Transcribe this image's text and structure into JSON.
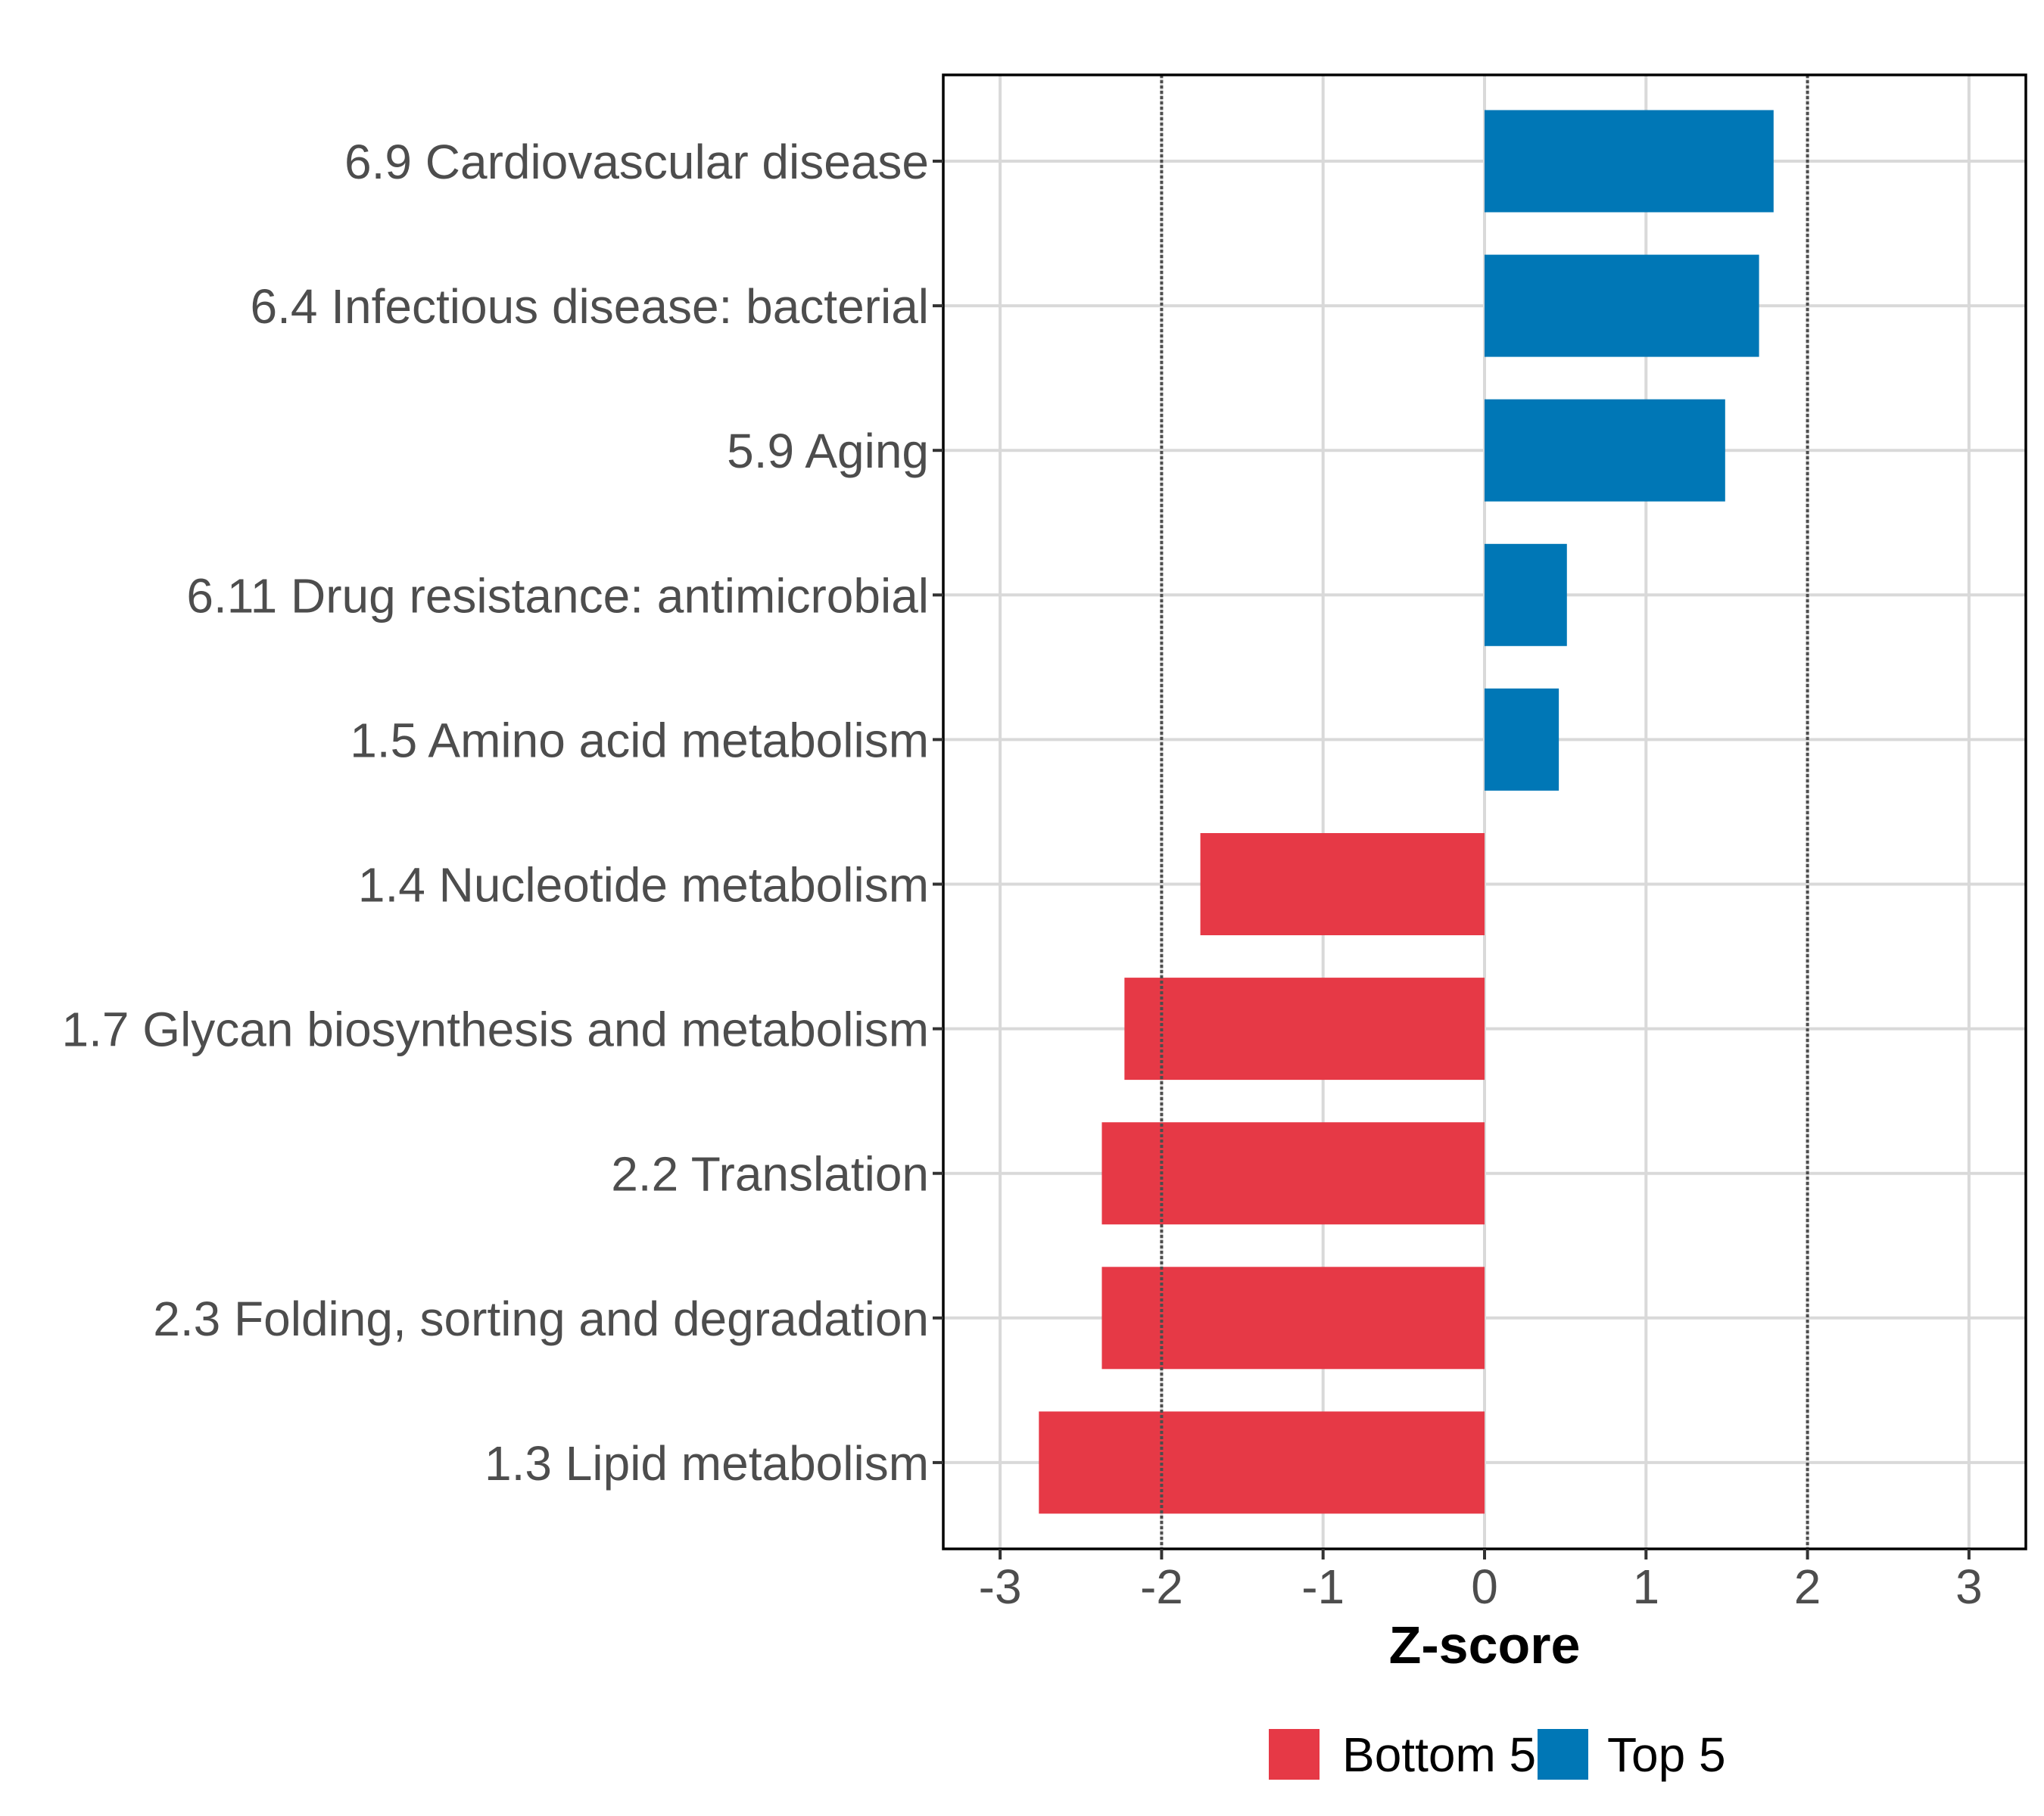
{
  "chart_data": {
    "type": "bar",
    "orientation": "horizontal",
    "title": "",
    "xlabel": "Z-score",
    "ylabel": "",
    "xlim": [
      -3.35,
      3.35
    ],
    "x_ticks": [
      -3,
      -2,
      -1,
      0,
      1,
      2,
      3
    ],
    "x_tick_labels": [
      "-3",
      "-2",
      "-1",
      "0",
      "1",
      "2",
      "3"
    ],
    "grid": true,
    "reference_lines": [
      {
        "x": -2,
        "style": "dotted"
      },
      {
        "x": 2,
        "style": "dotted"
      }
    ],
    "categories": [
      "6.9 Cardiovascular disease",
      "6.4 Infectious disease: bacterial",
      "5.9 Aging",
      "6.11 Drug resistance: antimicrobial",
      "1.5 Amino acid metabolism",
      "1.4 Nucleotide metabolism",
      "1.7 Glycan biosynthesis and metabolism",
      "2.2 Translation",
      "2.3 Folding, sorting and degradation",
      "1.3 Lipid metabolism"
    ],
    "values": [
      1.79,
      1.7,
      1.49,
      0.51,
      0.46,
      -1.76,
      -2.23,
      -2.37,
      -2.37,
      -2.76
    ],
    "groups": [
      "Top 5",
      "Top 5",
      "Top 5",
      "Top 5",
      "Top 5",
      "Bottom 5",
      "Bottom 5",
      "Bottom 5",
      "Bottom 5",
      "Bottom 5"
    ],
    "legend": {
      "position": "bottom",
      "entries": [
        {
          "label": "Bottom 5",
          "color": "#E63946"
        },
        {
          "label": "Top 5",
          "color": "#0077B6"
        }
      ]
    },
    "colors": {
      "Top 5": "#0077B6",
      "Bottom 5": "#E63946"
    }
  }
}
